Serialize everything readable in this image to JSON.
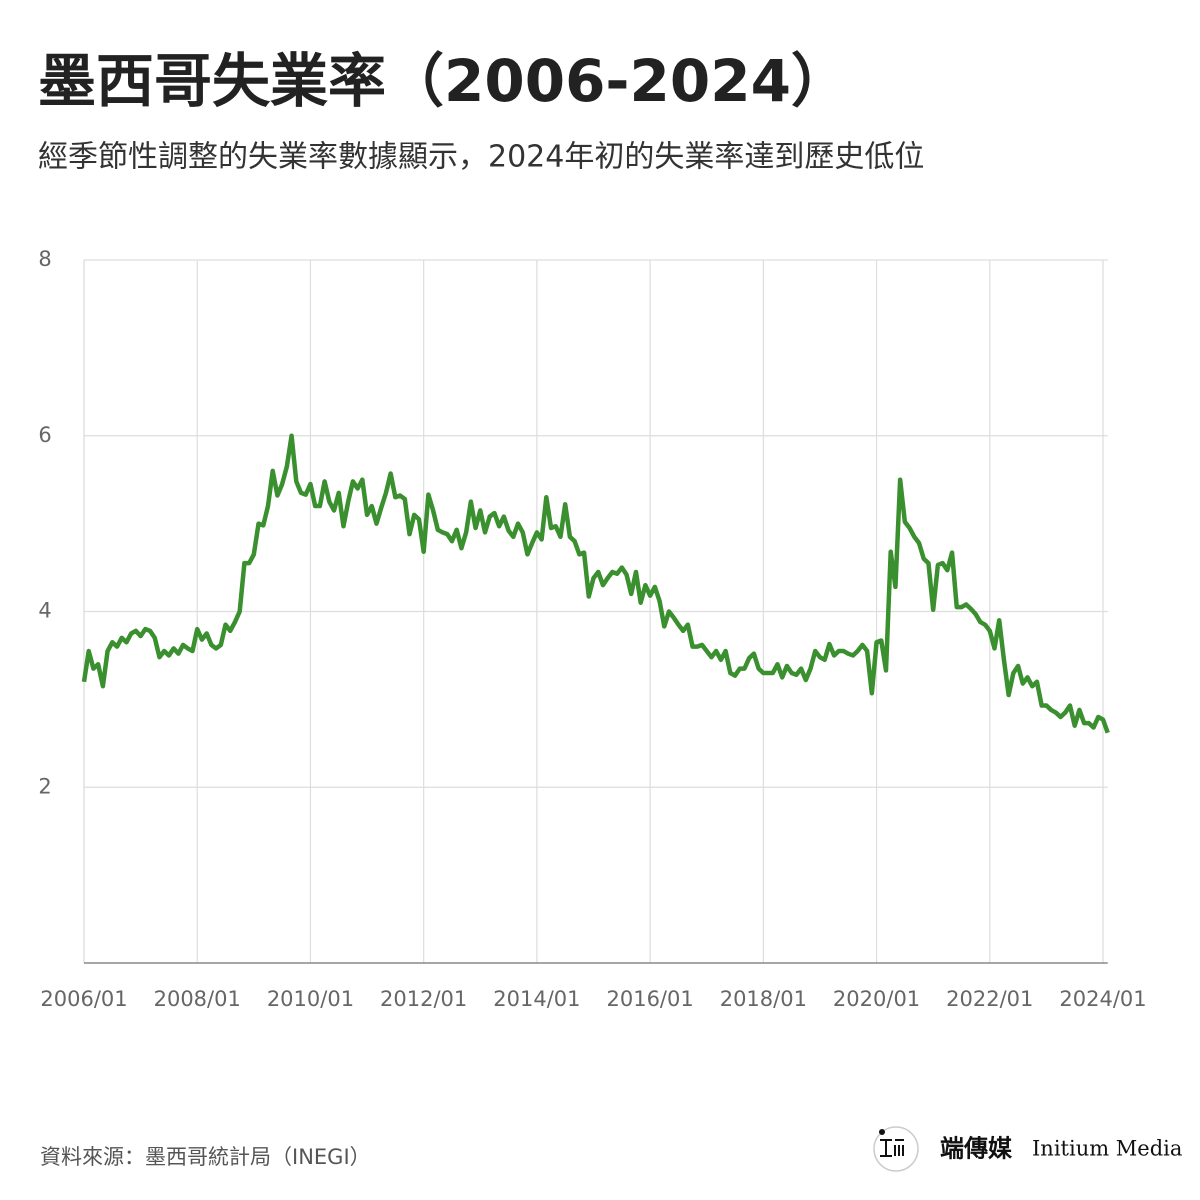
{
  "chart_data": {
    "type": "line",
    "title": "墨西哥失業率（2006-2024）",
    "subtitle": "經季節性調整的失業率數據顯示，2024年初的失業率達到歷史低位",
    "source": "資料來源：墨西哥統計局（INEGI）",
    "brand_cn": "端傳媒",
    "brand_en": "Initium Media",
    "x": [
      "2006/01",
      "2006/02",
      "2006/03",
      "2006/04",
      "2006/05",
      "2006/06",
      "2006/07",
      "2006/08",
      "2006/09",
      "2006/10",
      "2006/11",
      "2006/12",
      "2007/01",
      "2007/02",
      "2007/03",
      "2007/04",
      "2007/05",
      "2007/06",
      "2007/07",
      "2007/08",
      "2007/09",
      "2007/10",
      "2007/11",
      "2007/12",
      "2008/01",
      "2008/02",
      "2008/03",
      "2008/04",
      "2008/05",
      "2008/06",
      "2008/07",
      "2008/08",
      "2008/09",
      "2008/10",
      "2008/11",
      "2008/12",
      "2009/01",
      "2009/02",
      "2009/03",
      "2009/04",
      "2009/05",
      "2009/06",
      "2009/07",
      "2009/08",
      "2009/09",
      "2009/10",
      "2009/11",
      "2009/12",
      "2010/01",
      "2010/02",
      "2010/03",
      "2010/04",
      "2010/05",
      "2010/06",
      "2010/07",
      "2010/08",
      "2010/09",
      "2010/10",
      "2010/11",
      "2010/12",
      "2011/01",
      "2011/02",
      "2011/03",
      "2011/04",
      "2011/05",
      "2011/06",
      "2011/07",
      "2011/08",
      "2011/09",
      "2011/10",
      "2011/11",
      "2011/12",
      "2012/01",
      "2012/02",
      "2012/03",
      "2012/04",
      "2012/05",
      "2012/06",
      "2012/07",
      "2012/08",
      "2012/09",
      "2012/10",
      "2012/11",
      "2012/12",
      "2013/01",
      "2013/02",
      "2013/03",
      "2013/04",
      "2013/05",
      "2013/06",
      "2013/07",
      "2013/08",
      "2013/09",
      "2013/10",
      "2013/11",
      "2013/12",
      "2014/01",
      "2014/02",
      "2014/03",
      "2014/04",
      "2014/05",
      "2014/06",
      "2014/07",
      "2014/08",
      "2014/09",
      "2014/10",
      "2014/11",
      "2014/12",
      "2015/01",
      "2015/02",
      "2015/03",
      "2015/04",
      "2015/05",
      "2015/06",
      "2015/07",
      "2015/08",
      "2015/09",
      "2015/10",
      "2015/11",
      "2015/12",
      "2016/01",
      "2016/02",
      "2016/03",
      "2016/04",
      "2016/05",
      "2016/06",
      "2016/07",
      "2016/08",
      "2016/09",
      "2016/10",
      "2016/11",
      "2016/12",
      "2017/01",
      "2017/02",
      "2017/03",
      "2017/04",
      "2017/05",
      "2017/06",
      "2017/07",
      "2017/08",
      "2017/09",
      "2017/10",
      "2017/11",
      "2017/12",
      "2018/01",
      "2018/02",
      "2018/03",
      "2018/04",
      "2018/05",
      "2018/06",
      "2018/07",
      "2018/08",
      "2018/09",
      "2018/10",
      "2018/11",
      "2018/12",
      "2019/01",
      "2019/02",
      "2019/03",
      "2019/04",
      "2019/05",
      "2019/06",
      "2019/07",
      "2019/08",
      "2019/09",
      "2019/10",
      "2019/11",
      "2019/12",
      "2020/01",
      "2020/02",
      "2020/03",
      "2020/04",
      "2020/05",
      "2020/06",
      "2020/07",
      "2020/08",
      "2020/09",
      "2020/10",
      "2020/11",
      "2020/12",
      "2021/01",
      "2021/02",
      "2021/03",
      "2021/04",
      "2021/05",
      "2021/06",
      "2021/07",
      "2021/08",
      "2021/09",
      "2021/10",
      "2021/11",
      "2021/12",
      "2022/01",
      "2022/02",
      "2022/03",
      "2022/04",
      "2022/05",
      "2022/06",
      "2022/07",
      "2022/08",
      "2022/09",
      "2022/10",
      "2022/11",
      "2022/12",
      "2023/01",
      "2023/02",
      "2023/03",
      "2023/04",
      "2023/05",
      "2023/06",
      "2023/07",
      "2023/08",
      "2023/09",
      "2023/10",
      "2023/11",
      "2023/12",
      "2024/01",
      "2024/02"
    ],
    "series": [
      {
        "color": "#3a8f2e",
        "values": [
          3.2,
          3.55,
          3.35,
          3.4,
          3.15,
          3.55,
          3.65,
          3.6,
          3.7,
          3.65,
          3.75,
          3.78,
          3.72,
          3.8,
          3.78,
          3.7,
          3.48,
          3.55,
          3.5,
          3.58,
          3.52,
          3.62,
          3.58,
          3.55,
          3.8,
          3.68,
          3.75,
          3.62,
          3.58,
          3.62,
          3.85,
          3.78,
          3.88,
          4.0,
          4.55,
          4.55,
          4.65,
          5.0,
          4.98,
          5.2,
          5.6,
          5.32,
          5.45,
          5.65,
          6.0,
          5.48,
          5.35,
          5.33,
          5.45,
          5.2,
          5.2,
          5.48,
          5.25,
          5.15,
          5.35,
          4.97,
          5.25,
          5.48,
          5.4,
          5.5,
          5.1,
          5.2,
          5.0,
          5.18,
          5.35,
          5.57,
          5.3,
          5.32,
          5.28,
          4.88,
          5.1,
          5.05,
          4.68,
          5.33,
          5.15,
          4.93,
          4.9,
          4.88,
          4.8,
          4.93,
          4.72,
          4.9,
          5.25,
          4.95,
          5.15,
          4.9,
          5.08,
          5.12,
          4.97,
          5.08,
          4.92,
          4.85,
          5.0,
          4.9,
          4.65,
          4.78,
          4.9,
          4.82,
          5.3,
          4.95,
          4.97,
          4.85,
          5.22,
          4.85,
          4.8,
          4.65,
          4.67,
          4.17,
          4.38,
          4.45,
          4.3,
          4.38,
          4.45,
          4.43,
          4.5,
          4.42,
          4.2,
          4.45,
          4.1,
          4.3,
          4.18,
          4.28,
          4.12,
          3.83,
          4.0,
          3.93,
          3.85,
          3.78,
          3.85,
          3.6,
          3.6,
          3.62,
          3.55,
          3.48,
          3.55,
          3.45,
          3.55,
          3.3,
          3.27,
          3.35,
          3.35,
          3.47,
          3.52,
          3.35,
          3.3,
          3.3,
          3.3,
          3.4,
          3.25,
          3.38,
          3.3,
          3.28,
          3.35,
          3.22,
          3.35,
          3.55,
          3.48,
          3.45,
          3.63,
          3.5,
          3.55,
          3.55,
          3.52,
          3.5,
          3.55,
          3.62,
          3.55,
          3.07,
          3.65,
          3.67,
          3.33,
          4.68,
          4.28,
          5.5,
          5.02,
          4.95,
          4.85,
          4.78,
          4.6,
          4.55,
          4.02,
          4.53,
          4.55,
          4.47,
          4.67,
          4.05,
          4.05,
          4.08,
          4.03,
          3.97,
          3.88,
          3.85,
          3.78,
          3.58,
          3.9,
          3.45,
          3.05,
          3.3,
          3.38,
          3.18,
          3.25,
          3.15,
          3.2,
          2.93,
          2.93,
          2.88,
          2.85,
          2.8,
          2.85,
          2.93,
          2.7,
          2.88,
          2.73,
          2.73,
          2.68,
          2.8,
          2.77,
          2.62
        ]
      }
    ],
    "xticks": [
      "2006/01",
      "2008/01",
      "2010/01",
      "2012/01",
      "2014/01",
      "2016/01",
      "2018/01",
      "2020/01",
      "2022/01",
      "2024/01"
    ],
    "ylim": [
      0,
      8
    ],
    "yticks": [
      2,
      4,
      6,
      8
    ],
    "grid": true
  }
}
